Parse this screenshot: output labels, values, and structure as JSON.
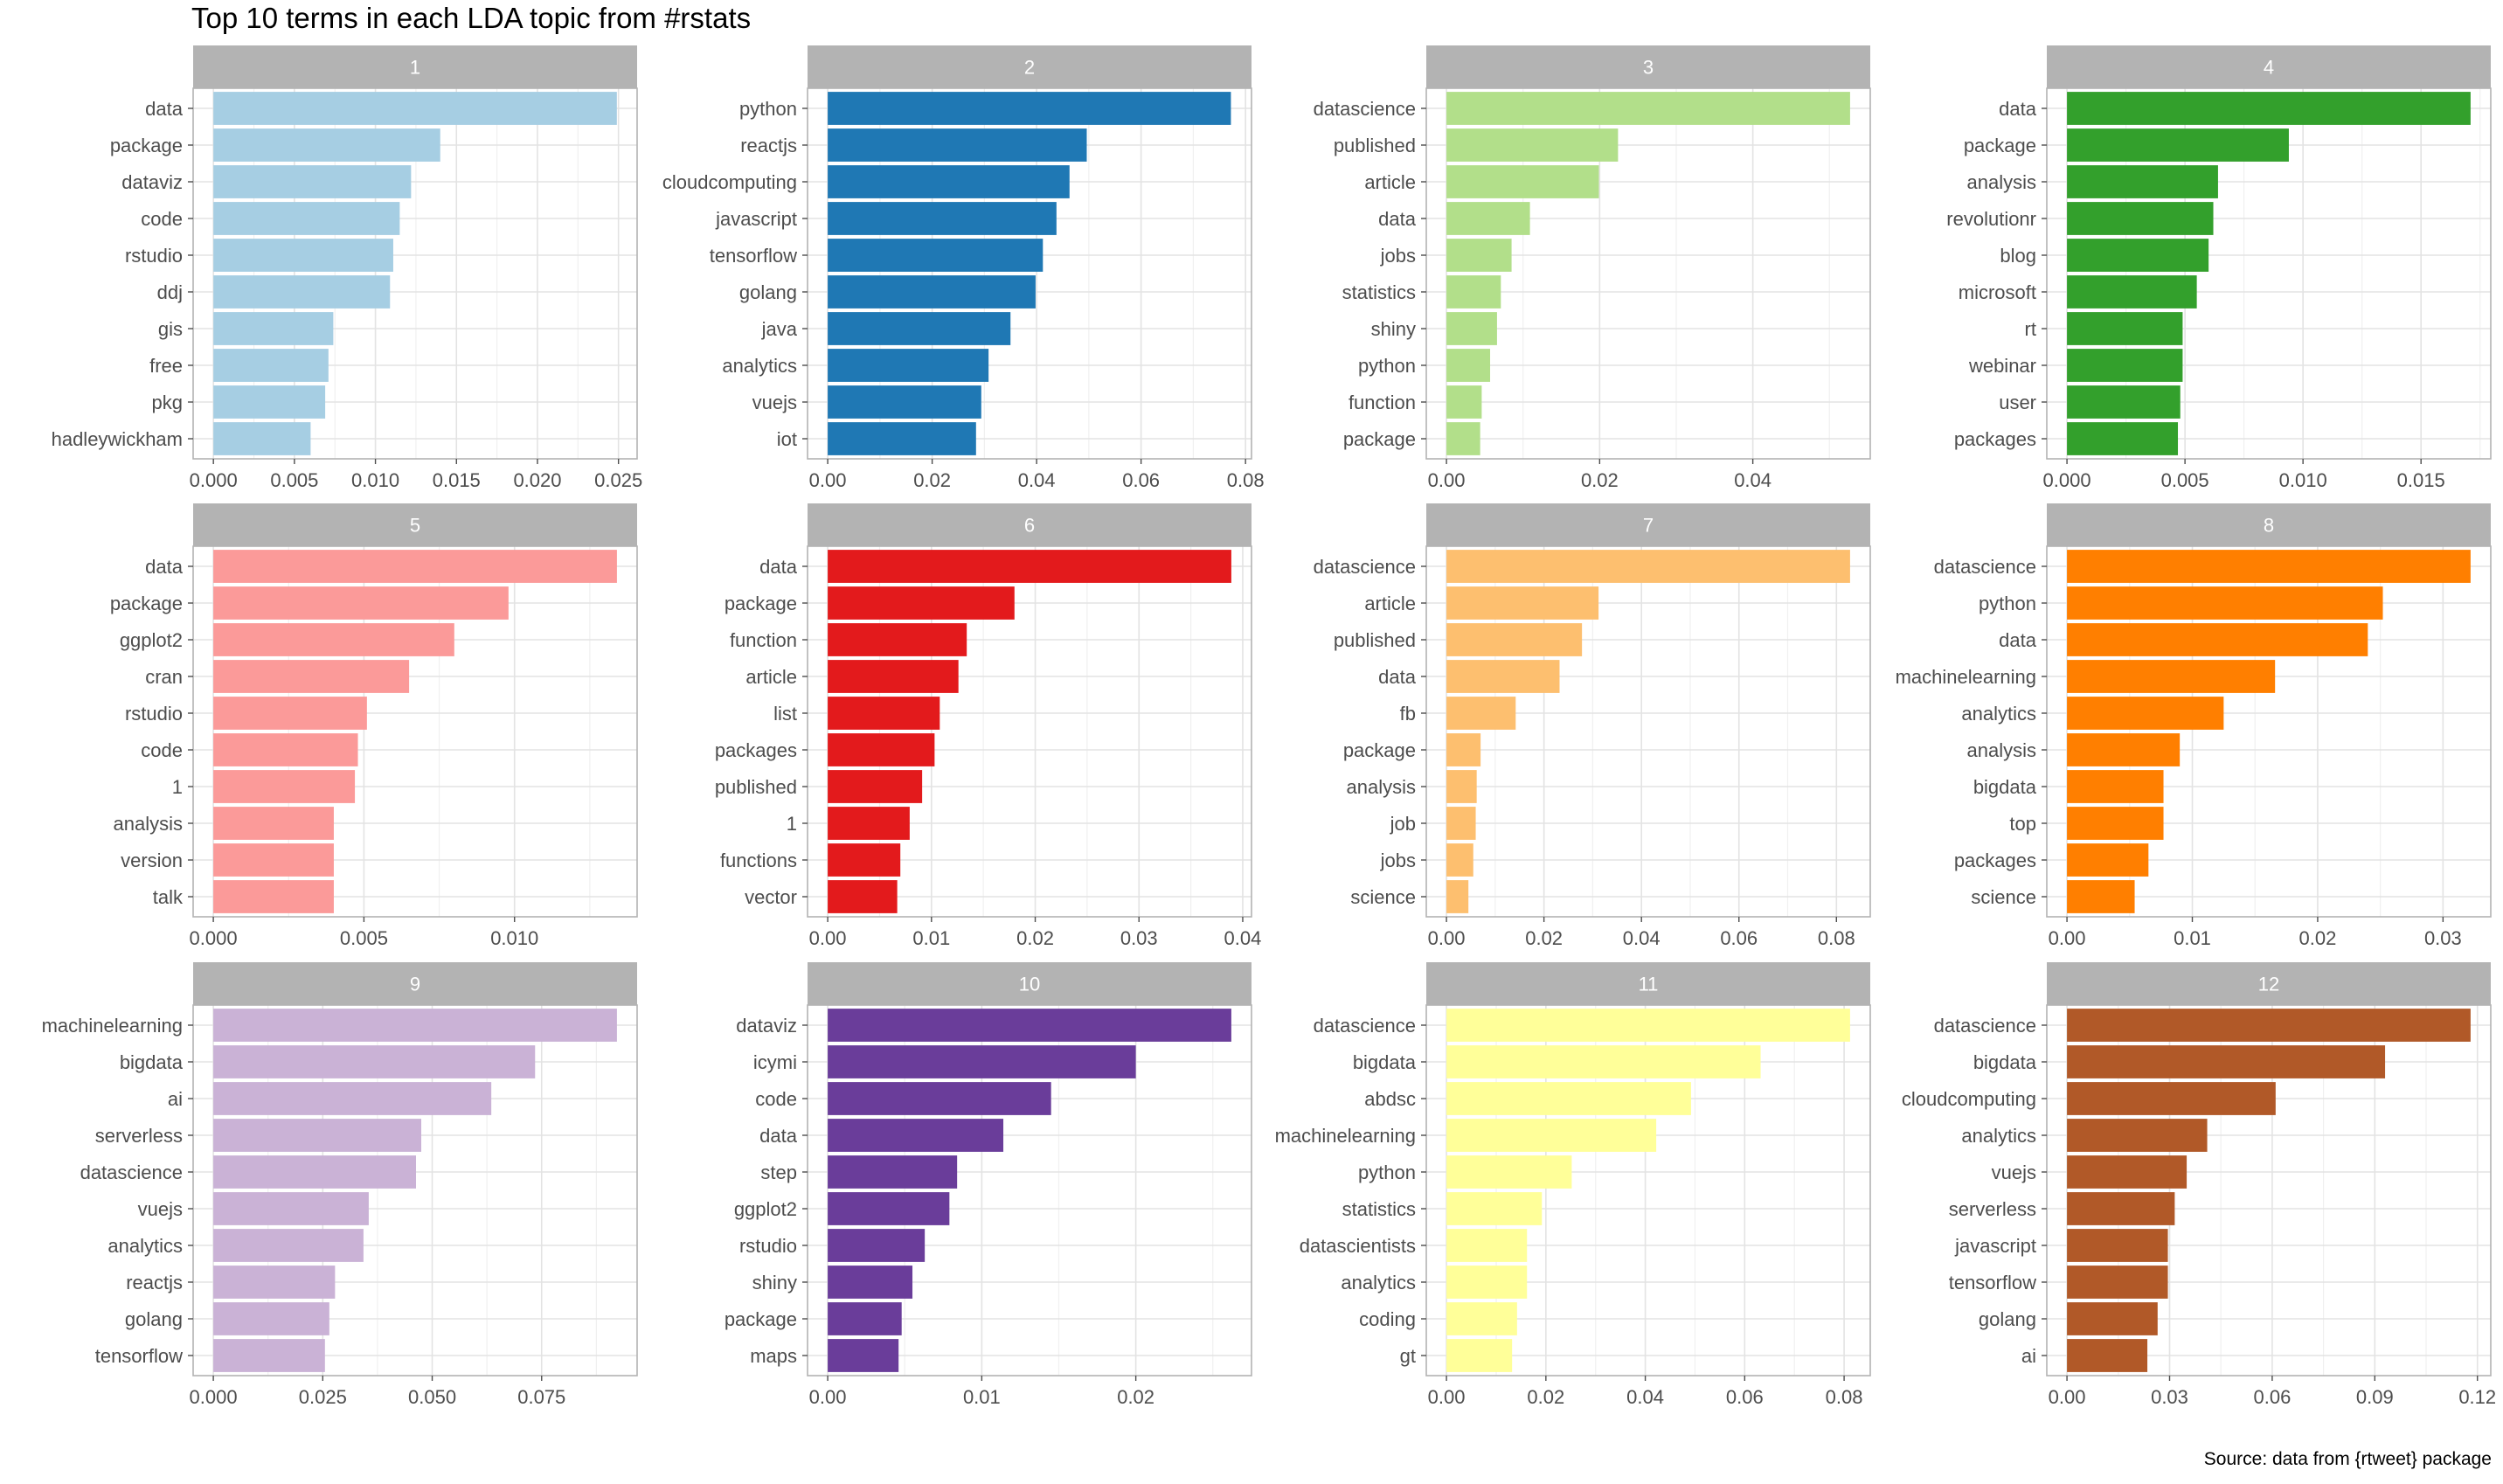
{
  "chart_data": {
    "type": "bar",
    "orientation": "horizontal",
    "title": "Top 10 terms in each LDA topic from #rstats",
    "caption": "Source: data from {rtweet} package",
    "xlabel": "",
    "ylabel": "",
    "grid": true,
    "facets": [
      {
        "strip": "1",
        "color": "#A6CEE3",
        "terms": [
          "data",
          "package",
          "dataviz",
          "code",
          "rstudio",
          "ddj",
          "gis",
          "free",
          "pkg",
          "hadleywickham"
        ],
        "values": [
          0.0249,
          0.014,
          0.0122,
          0.0115,
          0.0111,
          0.0109,
          0.0074,
          0.0071,
          0.0069,
          0.006
        ],
        "xlim": [
          -0.00125,
          0.02615
        ],
        "ticks": [
          0,
          0.005,
          0.01,
          0.015,
          0.02,
          0.025
        ],
        "tick_labels": [
          "0.000",
          "0.005",
          "0.010",
          "0.015",
          "0.020",
          "0.025"
        ]
      },
      {
        "strip": "2",
        "color": "#1F78B4",
        "terms": [
          "python",
          "reactjs",
          "cloudcomputing",
          "javascript",
          "tensorflow",
          "golang",
          "java",
          "analytics",
          "vuejs",
          "iot"
        ],
        "values": [
          0.0772,
          0.0496,
          0.0463,
          0.0438,
          0.0412,
          0.0398,
          0.035,
          0.0308,
          0.0294,
          0.0284
        ],
        "xlim": [
          -0.003864,
          0.081144
        ],
        "ticks": [
          0,
          0.02,
          0.04,
          0.06,
          0.08
        ],
        "tick_labels": [
          "0.00",
          "0.02",
          "0.04",
          "0.06",
          "0.08"
        ]
      },
      {
        "strip": "3",
        "color": "#B2DF8A",
        "terms": [
          "datascience",
          "published",
          "article",
          "data",
          "jobs",
          "statistics",
          "shiny",
          "python",
          "function",
          "package"
        ],
        "values": [
          0.0527,
          0.0224,
          0.0199,
          0.0109,
          0.0085,
          0.0071,
          0.0066,
          0.0057,
          0.0046,
          0.0044
        ],
        "xlim": [
          -0.002635,
          0.055335
        ],
        "ticks": [
          0,
          0.02,
          0.04
        ],
        "tick_labels": [
          "0.00",
          "0.02",
          "0.04"
        ]
      },
      {
        "strip": "4",
        "color": "#33A02C",
        "terms": [
          "data",
          "package",
          "analysis",
          "revolutionr",
          "blog",
          "microsoft",
          "rt",
          "webinar",
          "user",
          "packages"
        ],
        "values": [
          0.0171,
          0.0094,
          0.0064,
          0.0062,
          0.006,
          0.0055,
          0.0049,
          0.0049,
          0.0048,
          0.0047
        ],
        "xlim": [
          -0.000855,
          0.017955
        ],
        "ticks": [
          0,
          0.005,
          0.01,
          0.015
        ],
        "tick_labels": [
          "0.000",
          "0.005",
          "0.010",
          "0.015"
        ]
      },
      {
        "strip": "5",
        "color": "#FB9A99",
        "terms": [
          "data",
          "package",
          "ggplot2",
          "cran",
          "rstudio",
          "code",
          "1",
          "analysis",
          "version",
          "talk"
        ],
        "values": [
          0.0134,
          0.0098,
          0.008,
          0.0065,
          0.0051,
          0.0048,
          0.0047,
          0.004,
          0.004,
          0.004
        ],
        "xlim": [
          -0.00067,
          0.01407
        ],
        "ticks": [
          0,
          0.005,
          0.01
        ],
        "tick_labels": [
          "0.000",
          "0.005",
          "0.010"
        ]
      },
      {
        "strip": "6",
        "color": "#E31A1C",
        "terms": [
          "data",
          "package",
          "function",
          "article",
          "list",
          "packages",
          "published",
          "1",
          "functions",
          "vector"
        ],
        "values": [
          0.0389,
          0.018,
          0.0134,
          0.0126,
          0.0108,
          0.0103,
          0.0091,
          0.0079,
          0.007,
          0.0067
        ],
        "xlim": [
          -0.001945,
          0.040845
        ],
        "ticks": [
          0,
          0.01,
          0.02,
          0.03,
          0.04
        ],
        "tick_labels": [
          "0.00",
          "0.01",
          "0.02",
          "0.03",
          "0.04"
        ]
      },
      {
        "strip": "7",
        "color": "#FDBF6F",
        "terms": [
          "datascience",
          "article",
          "published",
          "data",
          "fb",
          "package",
          "analysis",
          "job",
          "jobs",
          "science"
        ],
        "values": [
          0.0828,
          0.0312,
          0.0278,
          0.0232,
          0.0142,
          0.007,
          0.0062,
          0.006,
          0.0055,
          0.0045
        ],
        "xlim": [
          -0.00414,
          0.08694
        ],
        "ticks": [
          0,
          0.02,
          0.04,
          0.06,
          0.08
        ],
        "tick_labels": [
          "0.00",
          "0.02",
          "0.04",
          "0.06",
          "0.08"
        ]
      },
      {
        "strip": "8",
        "color": "#FF7F00",
        "terms": [
          "datascience",
          "python",
          "data",
          "machinelearning",
          "analytics",
          "analysis",
          "bigdata",
          "top",
          "packages",
          "science"
        ],
        "values": [
          0.0322,
          0.0252,
          0.024,
          0.0166,
          0.0125,
          0.009,
          0.0077,
          0.0077,
          0.0065,
          0.0054
        ],
        "xlim": [
          -0.00161,
          0.03381
        ],
        "ticks": [
          0,
          0.01,
          0.02,
          0.03
        ],
        "tick_labels": [
          "0.00",
          "0.01",
          "0.02",
          "0.03"
        ]
      },
      {
        "strip": "9",
        "color": "#CAB2D6",
        "terms": [
          "machinelearning",
          "bigdata",
          "ai",
          "serverless",
          "datascience",
          "vuejs",
          "analytics",
          "reactjs",
          "golang",
          "tensorflow"
        ],
        "values": [
          0.0922,
          0.0735,
          0.0635,
          0.0475,
          0.0463,
          0.0355,
          0.0343,
          0.0278,
          0.0265,
          0.0255
        ],
        "xlim": [
          -0.00461,
          0.09681
        ],
        "ticks": [
          0,
          0.025,
          0.05,
          0.075
        ],
        "tick_labels": [
          "0.000",
          "0.025",
          "0.050",
          "0.075"
        ]
      },
      {
        "strip": "10",
        "color": "#6A3D9A",
        "terms": [
          "dataviz",
          "icymi",
          "code",
          "data",
          "step",
          "ggplot2",
          "rstudio",
          "shiny",
          "package",
          "maps"
        ],
        "values": [
          0.0262,
          0.02,
          0.0145,
          0.0114,
          0.0084,
          0.0079,
          0.0063,
          0.0055,
          0.0048,
          0.0046
        ],
        "xlim": [
          -0.00131,
          0.02751
        ],
        "ticks": [
          0,
          0.01,
          0.02
        ],
        "tick_labels": [
          "0.00",
          "0.01",
          "0.02"
        ]
      },
      {
        "strip": "11",
        "color": "#FFFF99",
        "terms": [
          "datascience",
          "bigdata",
          "abdsc",
          "machinelearning",
          "python",
          "statistics",
          "datascientists",
          "analytics",
          "coding",
          "gt"
        ],
        "values": [
          0.0812,
          0.0632,
          0.0492,
          0.0422,
          0.0252,
          0.0192,
          0.0162,
          0.0162,
          0.0142,
          0.0132
        ],
        "xlim": [
          -0.00406,
          0.08526
        ],
        "ticks": [
          0,
          0.02,
          0.04,
          0.06,
          0.08
        ],
        "tick_labels": [
          "0.00",
          "0.02",
          "0.04",
          "0.06",
          "0.08"
        ]
      },
      {
        "strip": "12",
        "color": "#B15928",
        "terms": [
          "datascience",
          "bigdata",
          "cloudcomputing",
          "analytics",
          "vuejs",
          "serverless",
          "javascript",
          "tensorflow",
          "golang",
          "ai"
        ],
        "values": [
          0.118,
          0.093,
          0.061,
          0.041,
          0.035,
          0.0315,
          0.0295,
          0.0295,
          0.0265,
          0.0235
        ],
        "xlim": [
          -0.0059,
          0.1239
        ],
        "ticks": [
          0,
          0.03,
          0.06,
          0.09,
          0.12
        ],
        "tick_labels": [
          "0.00",
          "0.03",
          "0.06",
          "0.09",
          "0.12"
        ]
      }
    ]
  }
}
